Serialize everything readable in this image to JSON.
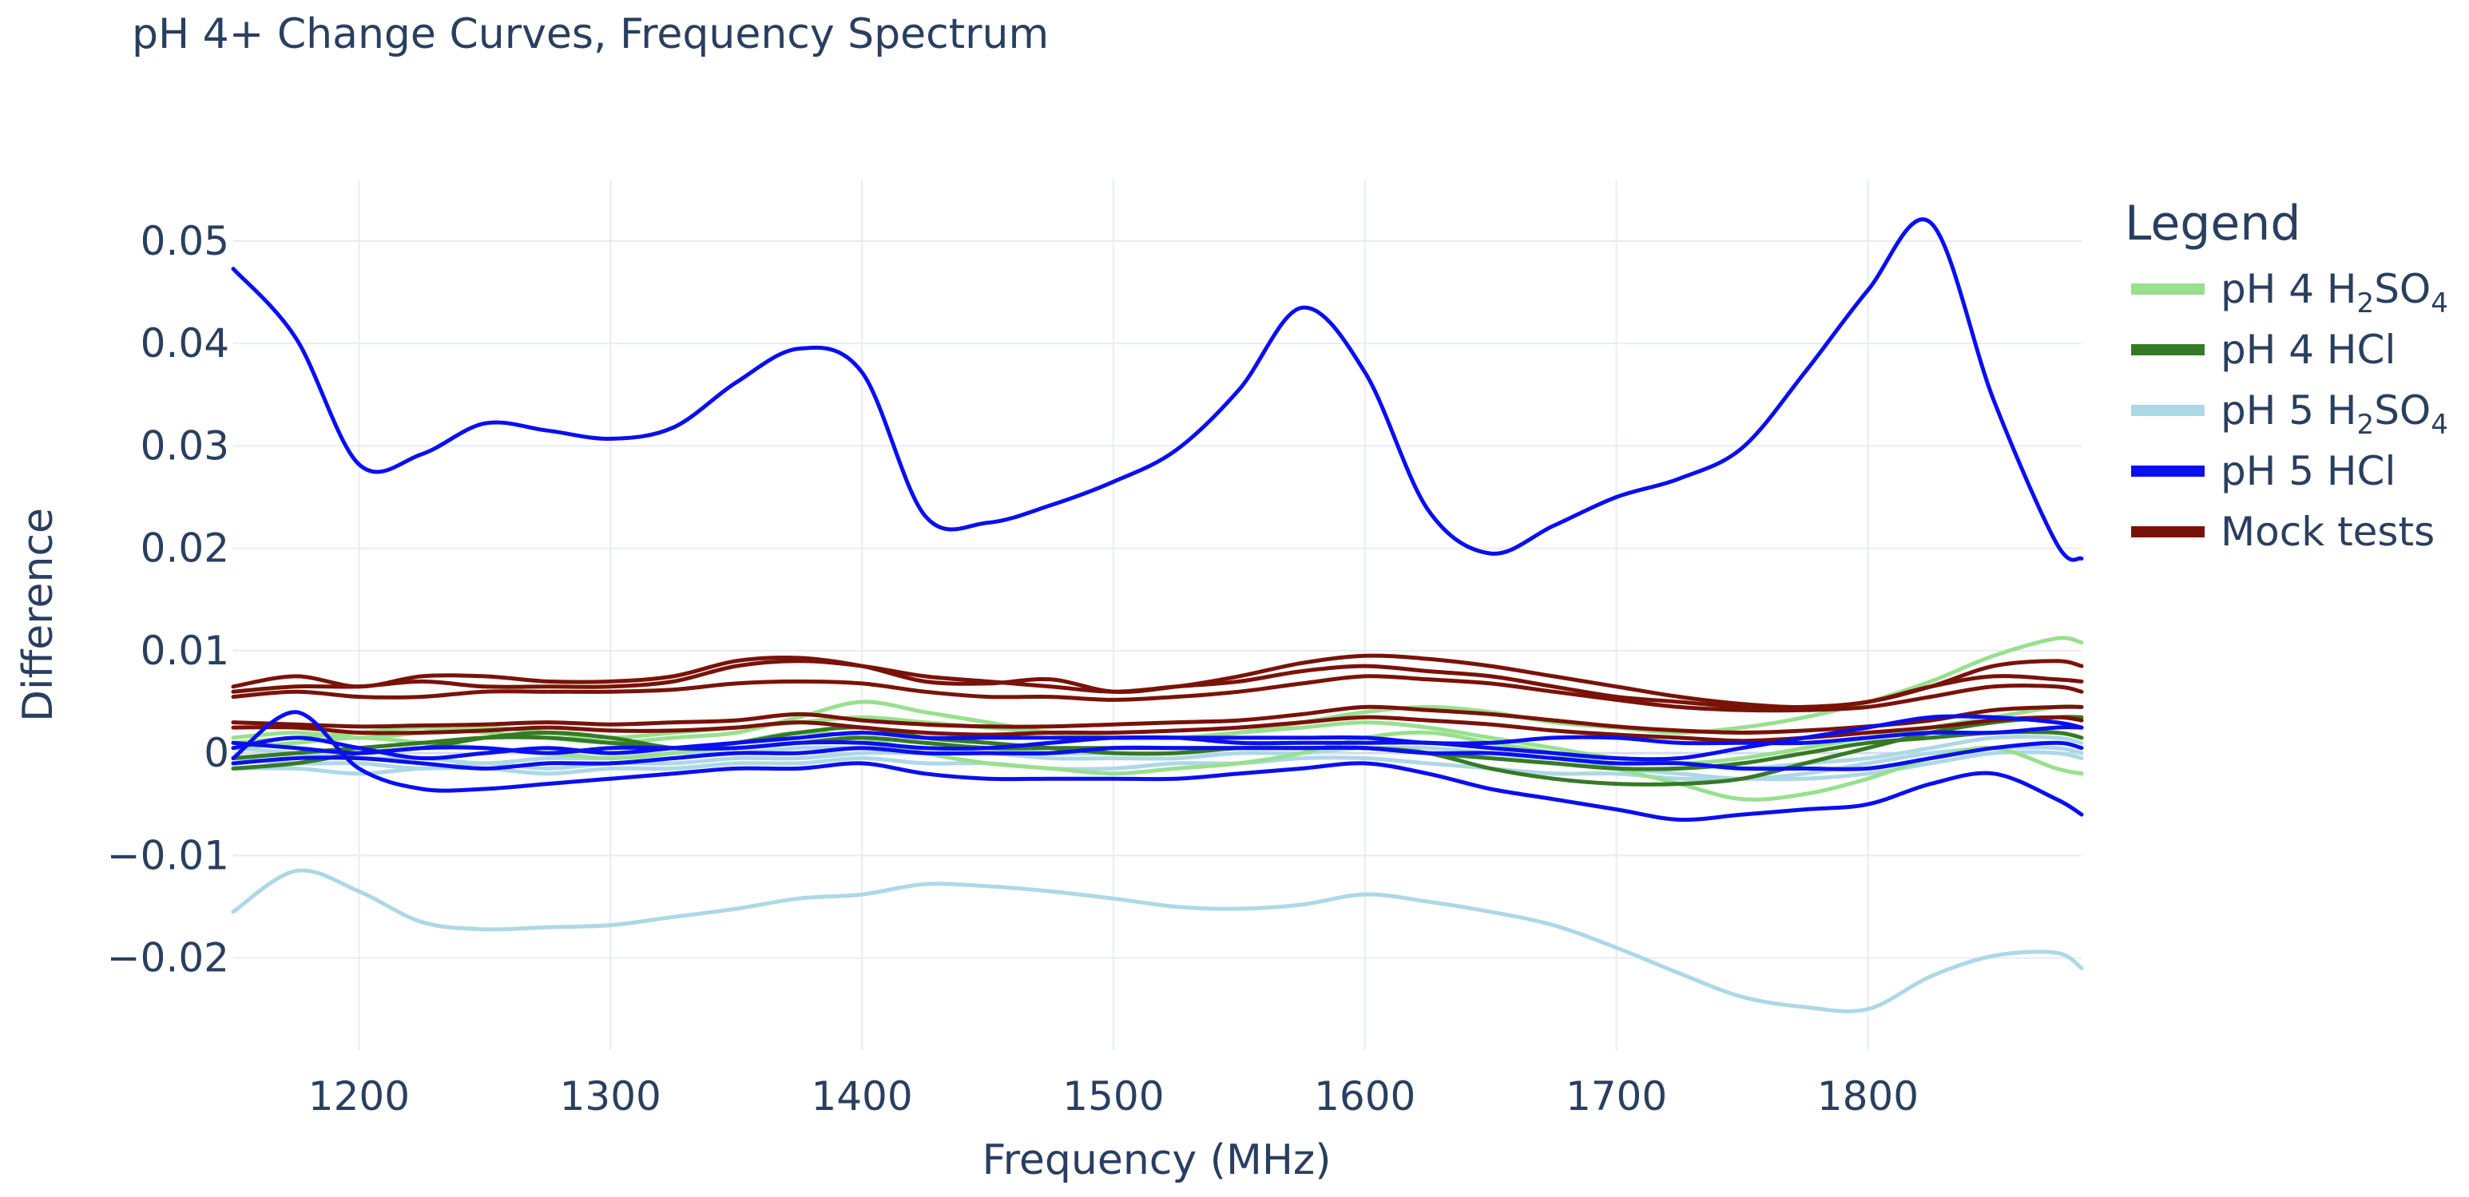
{
  "chart_data": {
    "type": "line",
    "title": "pH 4+ Change Curves, Frequency Spectrum",
    "xlabel": "Frequency (MHz)",
    "ylabel": "Difference",
    "xlim": [
      1150,
      1885
    ],
    "ylim": [
      -0.029,
      0.056
    ],
    "xticks": [
      1200,
      1300,
      1400,
      1500,
      1600,
      1700,
      1800
    ],
    "xtick_labels": [
      "1200",
      "1300",
      "1400",
      "1500",
      "1600",
      "1700",
      "1800"
    ],
    "yticks": [
      -0.02,
      -0.01,
      0,
      0.01,
      0.02,
      0.03,
      0.04,
      0.05
    ],
    "ytick_labels": [
      "−0.02",
      "−0.01",
      "0",
      "0.01",
      "0.02",
      "0.03",
      "0.04",
      "0.05"
    ],
    "grid": true,
    "legend": {
      "title": "Legend",
      "position": "top-right",
      "entries": [
        {
          "group": "h2so4_4",
          "label_main": "pH 4 H",
          "sub1": "2",
          "mid": "SO",
          "sub2": "4",
          "color": "#98e08e"
        },
        {
          "group": "hcl_4",
          "label_main": "pH 4 HCl",
          "color": "#357a25"
        },
        {
          "group": "h2so4_5",
          "label_main": "pH 5 H",
          "sub1": "2",
          "mid": "SO",
          "sub2": "4",
          "color": "#add8e6"
        },
        {
          "group": "hcl_5",
          "label_main": "pH 5 HCl",
          "color": "#0a0ff0"
        },
        {
          "group": "mock",
          "label_main": "Mock tests",
          "color": "#7a1208"
        }
      ]
    },
    "x": [
      1150,
      1175,
      1200,
      1225,
      1250,
      1275,
      1300,
      1325,
      1350,
      1375,
      1400,
      1425,
      1450,
      1475,
      1500,
      1525,
      1550,
      1575,
      1600,
      1625,
      1650,
      1675,
      1700,
      1725,
      1750,
      1775,
      1800,
      1825,
      1850,
      1875,
      1885
    ],
    "series": [
      {
        "group": "h2so4_4",
        "name": "pH 4 H2SO4 #1",
        "values": [
          0.001,
          0.0015,
          0.002,
          0.0025,
          0.002,
          0.0015,
          0.001,
          0.0015,
          0.002,
          0.0035,
          0.005,
          0.004,
          0.003,
          0.002,
          0.0015,
          0.0015,
          0.002,
          0.003,
          0.004,
          0.0045,
          0.004,
          0.003,
          0.0025,
          0.002,
          0.0025,
          0.0035,
          0.005,
          0.007,
          0.0095,
          0.0112,
          0.0108
        ]
      },
      {
        "group": "h2so4_4",
        "name": "pH 4 H2SO4 #2",
        "values": [
          0.0005,
          0.001,
          0.0015,
          0.001,
          0.0005,
          0.0,
          -0.0005,
          0.0,
          0.001,
          0.002,
          0.0015,
          0.0,
          -0.001,
          -0.0015,
          -0.002,
          -0.0015,
          -0.001,
          0.0,
          0.0015,
          0.002,
          0.001,
          0.0,
          -0.0015,
          -0.003,
          -0.0045,
          -0.004,
          -0.0025,
          -0.0005,
          0.0005,
          -0.0015,
          -0.002
        ]
      },
      {
        "group": "h2so4_4",
        "name": "pH 4 H2SO4 #3",
        "values": [
          0.0015,
          0.002,
          0.0015,
          0.002,
          0.0025,
          0.002,
          0.0015,
          0.002,
          0.0025,
          0.003,
          0.0035,
          0.003,
          0.0025,
          0.002,
          0.0015,
          0.0015,
          0.002,
          0.0025,
          0.003,
          0.0025,
          0.0015,
          0.0005,
          -0.0005,
          -0.001,
          -0.0005,
          0.0005,
          0.0015,
          0.0025,
          0.0035,
          0.0045,
          0.0045
        ]
      },
      {
        "group": "hcl_4",
        "name": "pH 4 HCl #1",
        "values": [
          -0.0015,
          -0.001,
          0.0,
          0.0005,
          0.0015,
          0.002,
          0.0015,
          0.0005,
          0.0005,
          0.001,
          0.0015,
          0.001,
          0.0005,
          0.0005,
          0.0005,
          0.0005,
          0.0005,
          0.0005,
          0.0005,
          0.0,
          -0.0015,
          -0.0025,
          -0.003,
          -0.003,
          -0.0025,
          -0.001,
          0.0005,
          0.002,
          0.003,
          0.0035,
          0.0035
        ]
      },
      {
        "group": "hcl_4",
        "name": "pH 4 HCl #2",
        "values": [
          -0.0005,
          0.0,
          0.0005,
          0.001,
          0.0015,
          0.0015,
          0.001,
          0.0005,
          0.001,
          0.002,
          0.0025,
          0.0015,
          0.001,
          0.0005,
          0.0,
          0.0,
          0.0005,
          0.0005,
          0.0005,
          0.0,
          -0.0005,
          -0.001,
          -0.0015,
          -0.0015,
          -0.001,
          0.0,
          0.001,
          0.0015,
          0.002,
          0.002,
          0.0015
        ]
      },
      {
        "group": "h2so4_5",
        "name": "pH 5 H2SO4 #1",
        "values": [
          -0.0155,
          -0.0115,
          -0.0135,
          -0.0165,
          -0.0172,
          -0.017,
          -0.0168,
          -0.016,
          -0.0152,
          -0.0142,
          -0.0138,
          -0.0128,
          -0.013,
          -0.0135,
          -0.0142,
          -0.015,
          -0.0152,
          -0.0148,
          -0.0138,
          -0.0145,
          -0.0155,
          -0.0168,
          -0.019,
          -0.0215,
          -0.0238,
          -0.0248,
          -0.025,
          -0.0218,
          -0.0198,
          -0.0195,
          -0.021
        ]
      },
      {
        "group": "h2so4_5",
        "name": "pH 5 H2SO4 #2",
        "values": [
          -0.0005,
          -0.001,
          -0.001,
          -0.0015,
          -0.001,
          -0.0015,
          -0.001,
          -0.001,
          -0.0005,
          -0.0005,
          0.0,
          0.0,
          0.0,
          -0.0005,
          -0.0005,
          -0.0005,
          0.0,
          0.0,
          0.0005,
          0.0,
          -0.0005,
          -0.001,
          -0.0015,
          -0.002,
          -0.0025,
          -0.002,
          -0.001,
          0.0,
          0.0005,
          0.0005,
          0.0
        ]
      },
      {
        "group": "h2so4_5",
        "name": "pH 5 H2SO4 #3",
        "values": [
          0.0005,
          0.0,
          -0.0005,
          -0.0005,
          -0.001,
          -0.0005,
          -0.0005,
          0.0,
          0.0,
          0.0005,
          0.0005,
          0.0005,
          0.0005,
          0.0,
          0.0,
          0.0,
          0.0005,
          0.0005,
          0.0005,
          0.0005,
          0.0,
          -0.0005,
          -0.0005,
          -0.001,
          -0.0015,
          -0.001,
          -0.0005,
          0.0005,
          0.0015,
          0.0015,
          0.001
        ]
      },
      {
        "group": "h2so4_5",
        "name": "pH 5 H2SO4 #4",
        "values": [
          -0.0015,
          -0.0015,
          -0.002,
          -0.0015,
          -0.0015,
          -0.002,
          -0.0015,
          -0.0015,
          -0.001,
          -0.001,
          -0.0005,
          -0.001,
          -0.001,
          -0.0015,
          -0.0015,
          -0.001,
          -0.001,
          -0.0005,
          -0.0005,
          -0.001,
          -0.0015,
          -0.002,
          -0.002,
          -0.0025,
          -0.0025,
          -0.0025,
          -0.002,
          -0.001,
          0.0,
          0.0,
          -0.0005
        ]
      },
      {
        "group": "hcl_5",
        "name": "pH 5 HCl #1",
        "values": [
          0.0473,
          0.0405,
          0.0282,
          0.0292,
          0.0322,
          0.0315,
          0.0307,
          0.0318,
          0.0362,
          0.0395,
          0.0372,
          0.0232,
          0.0225,
          0.0242,
          0.0265,
          0.0296,
          0.0355,
          0.0435,
          0.0372,
          0.0238,
          0.0195,
          0.0222,
          0.025,
          0.0268,
          0.0298,
          0.0372,
          0.0452,
          0.0518,
          0.0345,
          0.0205,
          0.019
        ]
      },
      {
        "group": "hcl_5",
        "name": "pH 5 HCl #2",
        "values": [
          -0.0005,
          0.004,
          -0.0015,
          -0.0035,
          -0.0035,
          -0.003,
          -0.0025,
          -0.002,
          -0.0015,
          -0.0015,
          -0.001,
          -0.002,
          -0.0025,
          -0.0025,
          -0.0025,
          -0.0025,
          -0.002,
          -0.0015,
          -0.001,
          -0.002,
          -0.0035,
          -0.0045,
          -0.0055,
          -0.0065,
          -0.006,
          -0.0055,
          -0.005,
          -0.003,
          -0.002,
          -0.0045,
          -0.006
        ]
      },
      {
        "group": "hcl_5",
        "name": "pH 5 HCl #3",
        "values": [
          0.0005,
          0.0015,
          0.0005,
          -0.0005,
          0.0,
          0.0005,
          0.0,
          0.0005,
          0.001,
          0.0015,
          0.002,
          0.0015,
          0.0015,
          0.0015,
          0.0015,
          0.0015,
          0.001,
          0.001,
          0.001,
          0.001,
          0.0005,
          0.0,
          -0.0005,
          -0.0005,
          0.0005,
          0.0015,
          0.0025,
          0.0035,
          0.0035,
          0.003,
          0.0025
        ]
      },
      {
        "group": "hcl_5",
        "name": "pH 5 HCl #4",
        "values": [
          0.001,
          0.0005,
          0.0,
          0.0005,
          0.0005,
          0.0,
          0.0005,
          0.0005,
          0.0005,
          0.001,
          0.001,
          0.0005,
          0.0005,
          0.001,
          0.0015,
          0.0015,
          0.0015,
          0.0015,
          0.0015,
          0.001,
          0.001,
          0.0015,
          0.0015,
          0.001,
          0.001,
          0.001,
          0.0015,
          0.002,
          0.002,
          0.0025,
          0.0025
        ]
      },
      {
        "group": "hcl_5",
        "name": "pH 5 HCl #5",
        "values": [
          -0.001,
          -0.0005,
          -0.0005,
          -0.001,
          -0.0015,
          -0.001,
          -0.001,
          -0.0005,
          0.0,
          0.0,
          0.0005,
          0.0,
          0.0,
          0.0,
          0.0005,
          0.0005,
          0.0005,
          0.0005,
          0.0005,
          0.0,
          0.0,
          -0.0005,
          -0.001,
          -0.001,
          -0.0015,
          -0.0015,
          -0.0015,
          -0.0005,
          0.0005,
          0.001,
          0.0005
        ]
      },
      {
        "group": "mock",
        "name": "Mock test #1",
        "values": [
          0.006,
          0.0065,
          0.0065,
          0.007,
          0.0065,
          0.0065,
          0.0065,
          0.007,
          0.0085,
          0.009,
          0.0085,
          0.0075,
          0.007,
          0.0065,
          0.006,
          0.0065,
          0.007,
          0.008,
          0.0085,
          0.008,
          0.0075,
          0.0065,
          0.0055,
          0.005,
          0.0045,
          0.0045,
          0.005,
          0.0065,
          0.0085,
          0.009,
          0.0085
        ]
      },
      {
        "group": "mock",
        "name": "Mock test #2",
        "values": [
          0.0065,
          0.0075,
          0.0065,
          0.0075,
          0.0075,
          0.007,
          0.007,
          0.0075,
          0.009,
          0.0093,
          0.0085,
          0.007,
          0.0068,
          0.0072,
          0.006,
          0.0065,
          0.0075,
          0.0088,
          0.0095,
          0.0092,
          0.0085,
          0.0075,
          0.0065,
          0.0055,
          0.0048,
          0.0045,
          0.005,
          0.0065,
          0.0075,
          0.0072,
          0.007
        ]
      },
      {
        "group": "mock",
        "name": "Mock test #3",
        "values": [
          0.0055,
          0.006,
          0.0055,
          0.0055,
          0.006,
          0.006,
          0.006,
          0.0062,
          0.0068,
          0.007,
          0.0068,
          0.006,
          0.0055,
          0.0055,
          0.0052,
          0.0055,
          0.006,
          0.0068,
          0.0075,
          0.0072,
          0.0068,
          0.006,
          0.0052,
          0.0045,
          0.0042,
          0.0042,
          0.0045,
          0.0055,
          0.0065,
          0.0065,
          0.006
        ]
      },
      {
        "group": "mock",
        "name": "Mock test #4",
        "values": [
          0.003,
          0.0028,
          0.0026,
          0.0027,
          0.0028,
          0.003,
          0.0028,
          0.003,
          0.0032,
          0.0038,
          0.0032,
          0.0028,
          0.0026,
          0.0026,
          0.0028,
          0.003,
          0.0032,
          0.0038,
          0.0045,
          0.0042,
          0.0038,
          0.0032,
          0.0026,
          0.0022,
          0.002,
          0.0022,
          0.0026,
          0.0032,
          0.0042,
          0.0045,
          0.0045
        ]
      },
      {
        "group": "mock",
        "name": "Mock test #5",
        "values": [
          0.0025,
          0.0025,
          0.002,
          0.002,
          0.0022,
          0.0025,
          0.0022,
          0.0022,
          0.0025,
          0.003,
          0.0025,
          0.002,
          0.0018,
          0.002,
          0.002,
          0.0022,
          0.0025,
          0.003,
          0.0035,
          0.0032,
          0.0028,
          0.0022,
          0.0018,
          0.0015,
          0.0012,
          0.0015,
          0.002,
          0.0025,
          0.0032,
          0.0035,
          0.0032
        ]
      }
    ]
  }
}
